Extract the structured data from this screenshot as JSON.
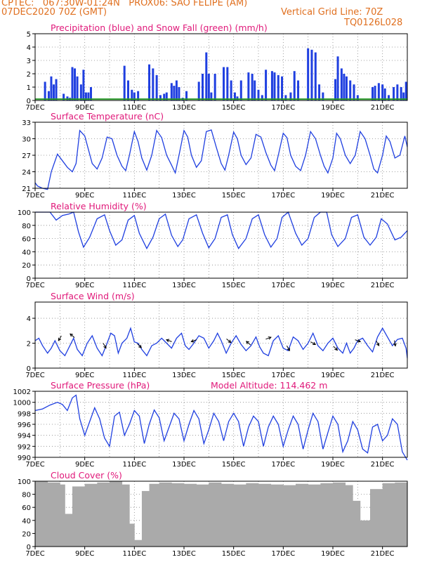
{
  "header": {
    "line1_left": "CPTEC:   067:30W-01:24N   PROX06: SAO FELIPE (AM)",
    "line2_left": "07DEC2020 70Z (GMT)",
    "line2_right": "Vertical Grid Line: 70Z",
    "line3_right": "TQ0126L028"
  },
  "colors": {
    "header": "#e07020",
    "title": "#e0197a",
    "precipitation": "#1f3fe0",
    "snowfall": "#2a9a2a",
    "line": "#1f3fe0",
    "wind_arrow": "#000000",
    "cloud": "#aaaaaa"
  },
  "x_axis": {
    "start_label": "7DEC",
    "tick_labels": [
      "7DEC",
      "9DEC",
      "11DEC",
      "13DEC",
      "15DEC",
      "17DEC",
      "19DEC",
      "21DEC"
    ],
    "range_days": [
      0,
      15
    ],
    "grid": "vertical dotted every 1 day, labels every 2 days"
  },
  "chart_data": [
    {
      "type": "bar",
      "title": "Precipitation (blue) and Snow Fall (green) (mm/h)",
      "ylim": [
        0,
        5
      ],
      "yticks": [
        0,
        1,
        2,
        3,
        4,
        5
      ],
      "series": [
        {
          "name": "Precipitation",
          "x": [
            0.4,
            0.55,
            0.65,
            0.75,
            0.85,
            1.15,
            1.3,
            1.4,
            1.5,
            1.6,
            1.7,
            1.85,
            1.95,
            2.05,
            2.15,
            2.25,
            3.6,
            3.75,
            3.9,
            4.0,
            4.15,
            4.6,
            4.75,
            4.9,
            5.05,
            5.2,
            5.3,
            5.5,
            5.6,
            5.7,
            5.8,
            5.95,
            6.1,
            6.6,
            6.75,
            6.9,
            7.0,
            7.1,
            7.25,
            7.6,
            7.75,
            7.9,
            8.05,
            8.15,
            8.3,
            8.6,
            8.75,
            8.85,
            9.0,
            9.15,
            9.3,
            9.55,
            9.65,
            9.8,
            9.95,
            10.1,
            10.3,
            10.45,
            10.6,
            11.0,
            11.15,
            11.3,
            11.45,
            11.6,
            12.1,
            12.2,
            12.35,
            12.45,
            12.55,
            12.7,
            12.85,
            13.0,
            13.6,
            13.7,
            13.85,
            14.0,
            14.1,
            14.25,
            14.45,
            14.6,
            14.75,
            14.85,
            14.95
          ],
          "values": [
            1.4,
            0.7,
            1.8,
            1.2,
            1.6,
            0.5,
            0.3,
            0.2,
            2.5,
            2.4,
            1.8,
            1.2,
            2.3,
            0.6,
            0.6,
            1.0,
            2.6,
            1.5,
            0.8,
            0.6,
            0.7,
            2.7,
            2.4,
            1.9,
            0.4,
            0.5,
            0.6,
            1.3,
            1.1,
            1.5,
            1.0,
            0.2,
            0.7,
            1.4,
            2.0,
            3.6,
            2.0,
            0.6,
            2.0,
            2.5,
            2.5,
            1.5,
            0.6,
            0.3,
            1.5,
            2.1,
            2.0,
            1.5,
            0.8,
            0.4,
            2.3,
            2.2,
            2.1,
            1.9,
            1.8,
            0.4,
            0.6,
            2.2,
            1.5,
            3.9,
            3.8,
            3.6,
            1.2,
            0.6,
            1.6,
            3.3,
            2.4,
            2.0,
            1.8,
            1.5,
            1.2,
            0.4,
            1.0,
            1.1,
            1.3,
            1.2,
            0.9,
            0.4,
            1.0,
            1.2,
            1.0,
            0.6,
            1.4
          ]
        },
        {
          "name": "Snow Fall",
          "x": [
            0,
            15
          ],
          "values": [
            0.1,
            0.1
          ]
        }
      ]
    },
    {
      "type": "line",
      "title": "Surface Temperature (nC)",
      "ylim": [
        21,
        33
      ],
      "yticks": [
        21,
        24,
        27,
        30,
        33
      ],
      "x": [
        0,
        0.1,
        0.3,
        0.5,
        0.65,
        0.9,
        1.1,
        1.3,
        1.5,
        1.65,
        1.8,
        2.0,
        2.15,
        2.3,
        2.5,
        2.7,
        2.9,
        3.1,
        3.3,
        3.5,
        3.65,
        3.8,
        4.0,
        4.15,
        4.3,
        4.5,
        4.7,
        4.9,
        5.1,
        5.3,
        5.5,
        5.65,
        5.8,
        6.0,
        6.15,
        6.3,
        6.5,
        6.7,
        6.9,
        7.1,
        7.3,
        7.5,
        7.65,
        7.8,
        8.0,
        8.15,
        8.3,
        8.5,
        8.7,
        8.9,
        9.1,
        9.3,
        9.5,
        9.65,
        9.8,
        10.0,
        10.15,
        10.3,
        10.5,
        10.7,
        10.9,
        11.1,
        11.3,
        11.5,
        11.65,
        11.8,
        12.0,
        12.15,
        12.3,
        12.5,
        12.7,
        12.9,
        13.1,
        13.3,
        13.5,
        13.65,
        13.8,
        14.0,
        14.15,
        14.3,
        14.5,
        14.7,
        14.9,
        15.0
      ],
      "values": [
        22,
        21.4,
        21,
        20.8,
        24,
        27.2,
        26,
        24.8,
        24,
        25.5,
        31.5,
        30.5,
        28,
        25.5,
        24.5,
        26.5,
        30.3,
        30,
        27,
        25,
        24.2,
        27,
        31.3,
        29.5,
        26.5,
        24.3,
        27,
        31.5,
        30.2,
        27,
        25.2,
        23.8,
        27,
        31.5,
        30.3,
        27,
        24.8,
        26,
        31.3,
        31.6,
        28.5,
        25.5,
        24.3,
        27,
        31.2,
        30,
        27,
        25.3,
        26.5,
        30.8,
        30.3,
        27.5,
        25.2,
        24.2,
        27,
        31,
        30.2,
        27,
        25,
        24.2,
        27,
        31.3,
        30,
        27,
        25,
        23.8,
        26.5,
        31,
        30,
        27,
        25.5,
        27,
        31.3,
        30,
        27,
        24.5,
        23.8,
        27,
        30.5,
        29.5,
        26.5,
        27,
        30.5,
        28.5
      ]
    },
    {
      "type": "line",
      "title": "Relative Humidity (%)",
      "ylim": [
        0,
        100
      ],
      "yticks": [
        0,
        20,
        40,
        60,
        80,
        100
      ],
      "x": [
        0,
        0.3,
        0.6,
        0.85,
        1.1,
        1.35,
        1.55,
        1.75,
        1.95,
        2.2,
        2.5,
        2.8,
        3.0,
        3.25,
        3.5,
        3.75,
        4.0,
        4.2,
        4.5,
        4.75,
        5.0,
        5.25,
        5.5,
        5.75,
        5.95,
        6.2,
        6.5,
        6.75,
        7.0,
        7.25,
        7.5,
        7.75,
        7.95,
        8.2,
        8.5,
        8.75,
        9.0,
        9.25,
        9.5,
        9.75,
        9.95,
        10.2,
        10.5,
        10.75,
        11.0,
        11.25,
        11.5,
        11.75,
        11.95,
        12.2,
        12.5,
        12.75,
        13.0,
        13.25,
        13.5,
        13.75,
        13.95,
        14.2,
        14.5,
        14.75,
        15.0
      ],
      "values": [
        100,
        100,
        100,
        88,
        95,
        97,
        100,
        70,
        47,
        62,
        90,
        96,
        72,
        50,
        58,
        88,
        95,
        68,
        45,
        62,
        90,
        97,
        65,
        48,
        58,
        90,
        96,
        68,
        46,
        60,
        92,
        96,
        66,
        45,
        60,
        90,
        96,
        66,
        47,
        60,
        92,
        100,
        68,
        50,
        60,
        92,
        100,
        100,
        66,
        48,
        60,
        92,
        96,
        62,
        50,
        62,
        90,
        82,
        58,
        62,
        72
      ]
    },
    {
      "type": "line",
      "title": "Surface Wind (m/s)",
      "ylim": [
        0,
        5.3
      ],
      "yticks": [
        0,
        2,
        4
      ],
      "x": [
        0,
        0.15,
        0.3,
        0.5,
        0.65,
        0.8,
        1.0,
        1.2,
        1.4,
        1.55,
        1.7,
        1.9,
        2.1,
        2.3,
        2.5,
        2.7,
        2.9,
        3.05,
        3.2,
        3.35,
        3.5,
        3.7,
        3.85,
        4.0,
        4.15,
        4.3,
        4.5,
        4.7,
        4.9,
        5.1,
        5.3,
        5.5,
        5.7,
        5.9,
        6.05,
        6.2,
        6.4,
        6.6,
        6.8,
        7.0,
        7.2,
        7.35,
        7.5,
        7.7,
        7.9,
        8.1,
        8.3,
        8.5,
        8.7,
        8.9,
        9.05,
        9.2,
        9.4,
        9.6,
        9.8,
        10.0,
        10.2,
        10.4,
        10.6,
        10.8,
        11.0,
        11.2,
        11.4,
        11.6,
        11.8,
        12.0,
        12.2,
        12.4,
        12.55,
        12.7,
        12.85,
        13.0,
        13.2,
        13.4,
        13.6,
        13.8,
        14.0,
        14.2,
        14.4,
        14.6,
        14.8,
        14.95,
        15.0
      ],
      "values": [
        2.2,
        2.4,
        1.8,
        1.2,
        1.6,
        2.2,
        1.4,
        1.0,
        1.8,
        2.4,
        1.5,
        1.0,
        2.0,
        2.6,
        1.6,
        1.0,
        2.0,
        2.8,
        2.6,
        1.2,
        2.0,
        2.4,
        3.2,
        2.1,
        2.0,
        1.5,
        1.0,
        1.8,
        2.0,
        2.4,
        2.0,
        1.6,
        2.4,
        2.8,
        1.8,
        1.5,
        2.0,
        2.6,
        2.4,
        1.6,
        2.2,
        2.8,
        2.2,
        1.2,
        2.0,
        2.6,
        1.9,
        1.4,
        1.8,
        2.5,
        1.7,
        1.2,
        1.0,
        2.2,
        2.6,
        1.6,
        1.4,
        2.5,
        2.2,
        1.5,
        2.0,
        2.8,
        1.8,
        1.4,
        2.0,
        2.4,
        1.6,
        1.2,
        2.0,
        1.2,
        1.6,
        2.2,
        2.4,
        1.8,
        1.3,
        2.5,
        3.2,
        2.5,
        1.8,
        2.3,
        2.4,
        1.6,
        0.8
      ]
    },
    {
      "type": "line",
      "title": "Surface Pressure (hPa)",
      "subtitle": "Model Altitude: 114.462 m",
      "ylim": [
        990,
        1002
      ],
      "yticks": [
        990,
        992,
        994,
        996,
        998,
        1000,
        1002
      ],
      "x": [
        0,
        0.3,
        0.6,
        0.9,
        1.1,
        1.3,
        1.5,
        1.65,
        1.8,
        2.0,
        2.2,
        2.4,
        2.6,
        2.8,
        3.0,
        3.2,
        3.4,
        3.6,
        3.8,
        4.0,
        4.2,
        4.4,
        4.6,
        4.8,
        5.0,
        5.2,
        5.4,
        5.6,
        5.8,
        6.0,
        6.2,
        6.4,
        6.6,
        6.8,
        7.0,
        7.2,
        7.4,
        7.6,
        7.8,
        8.0,
        8.2,
        8.4,
        8.6,
        8.8,
        9.0,
        9.2,
        9.4,
        9.6,
        9.8,
        10.0,
        10.2,
        10.4,
        10.6,
        10.8,
        11.0,
        11.2,
        11.4,
        11.6,
        11.8,
        12.0,
        12.2,
        12.4,
        12.6,
        12.8,
        13.0,
        13.2,
        13.4,
        13.6,
        13.8,
        14.0,
        14.2,
        14.4,
        14.6,
        14.8,
        15.0
      ],
      "values": [
        998.5,
        998.8,
        999.5,
        1000,
        999.6,
        998.5,
        1000.8,
        1001.3,
        997,
        994,
        996.5,
        999,
        997,
        993.5,
        992,
        997.5,
        998.2,
        994,
        996,
        998.5,
        997.5,
        992.5,
        996,
        998.6,
        997.2,
        993,
        995.5,
        998,
        997,
        993,
        996,
        998.5,
        997,
        992.5,
        995,
        998,
        996.5,
        993,
        996.5,
        998,
        996.5,
        992,
        995.5,
        997.5,
        996.5,
        992,
        995.5,
        997.5,
        996,
        992,
        995,
        997.5,
        996,
        991.5,
        995,
        998,
        996.5,
        991.5,
        994.5,
        997.5,
        996,
        991,
        993,
        996.5,
        995,
        991.5,
        990.8,
        995.5,
        996,
        993,
        994,
        997,
        996,
        991,
        989.5
      ]
    },
    {
      "type": "bar",
      "title": "Cloud Cover (%)",
      "ylim": [
        0,
        100
      ],
      "yticks": [
        0,
        20,
        40,
        60,
        80,
        100
      ],
      "x": [
        0,
        0.5,
        1,
        1.2,
        1.5,
        2,
        2.5,
        3,
        3.5,
        3.8,
        4.0,
        4.3,
        4.6,
        5,
        5.5,
        6,
        6.5,
        7,
        7.5,
        8,
        8.5,
        9,
        9.5,
        10,
        10.5,
        11,
        11.5,
        12,
        12.5,
        12.8,
        13.1,
        13.5,
        14,
        14.5
      ],
      "values": [
        100,
        98,
        95,
        50,
        92,
        96,
        98,
        100,
        95,
        35,
        10,
        85,
        96,
        98,
        97,
        96,
        95,
        98,
        96,
        95,
        97,
        96,
        95,
        94,
        96,
        95,
        97,
        98,
        94,
        70,
        40,
        88,
        97,
        98
      ]
    }
  ]
}
